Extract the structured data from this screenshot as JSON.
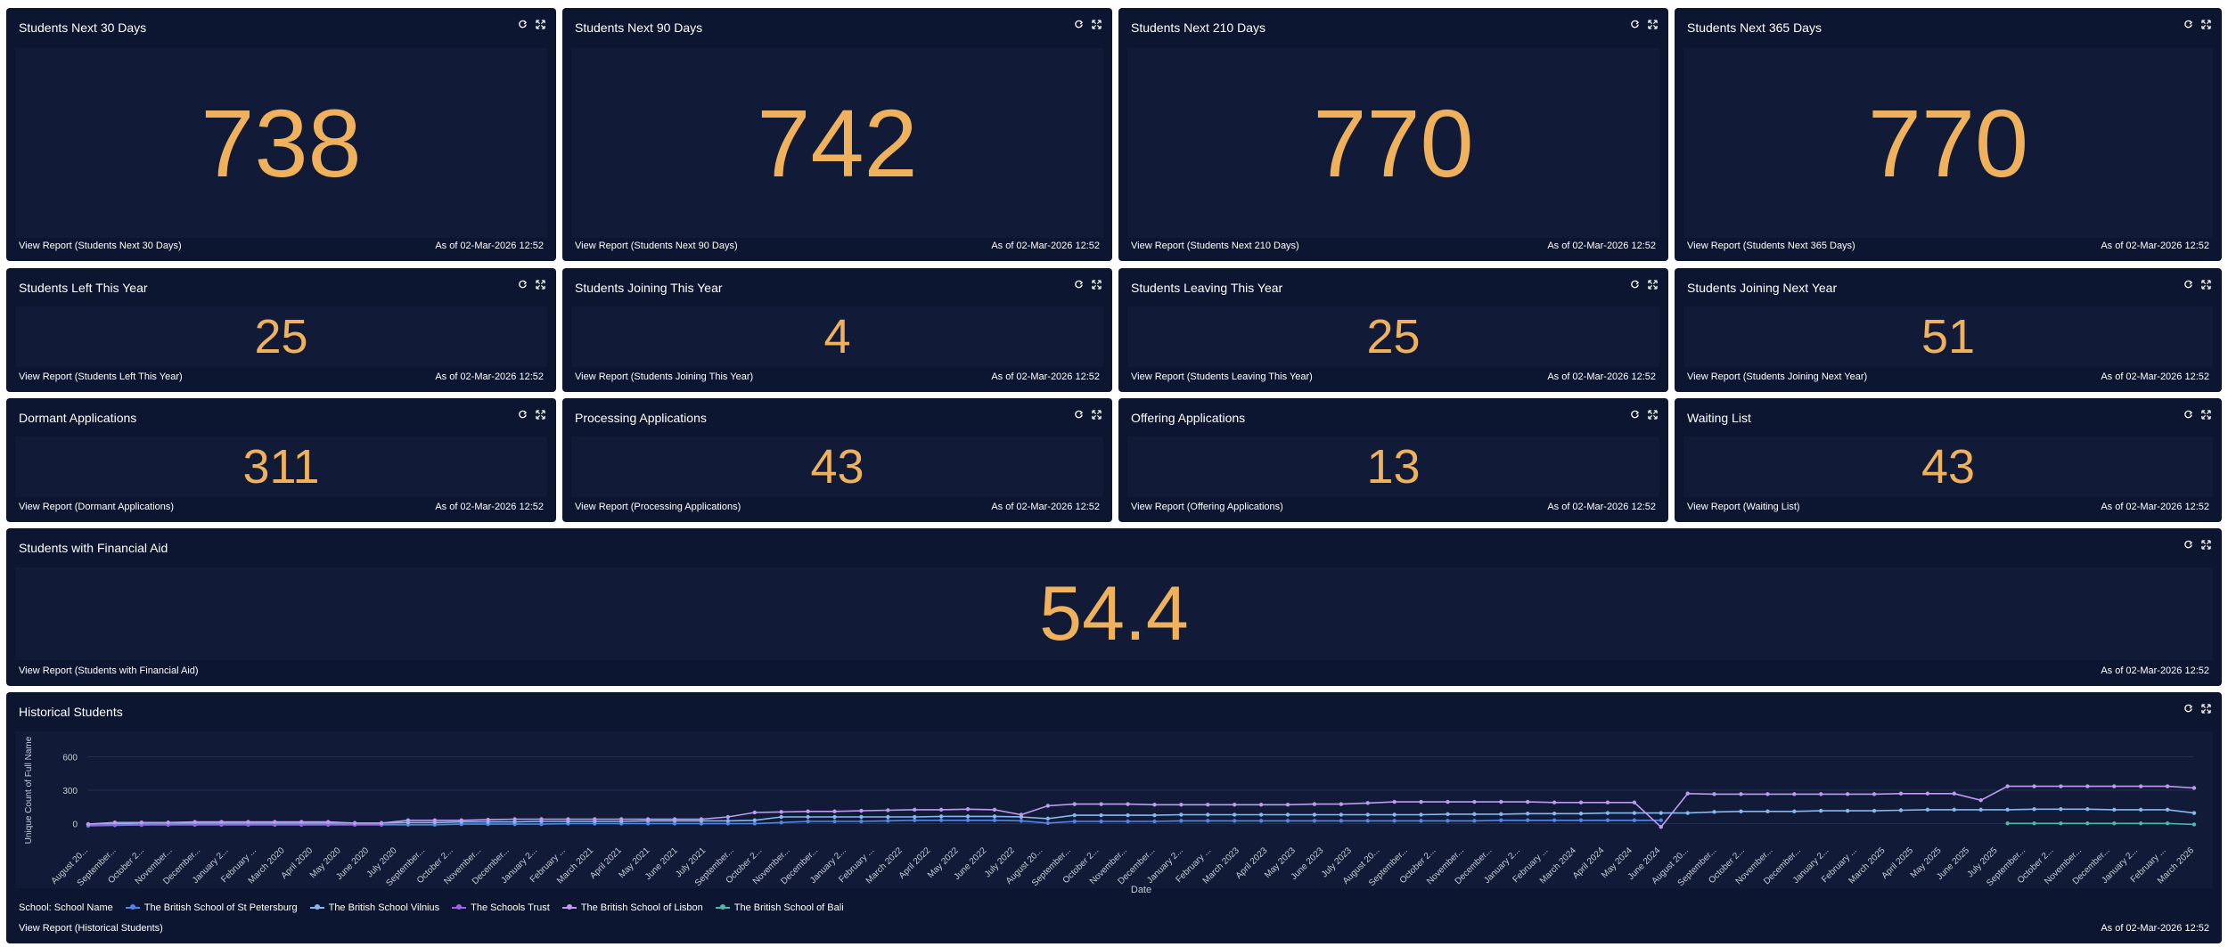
{
  "icons": {
    "refresh": "refresh-icon",
    "expand": "expand-icon"
  },
  "colors": {
    "accent": "#efb15c",
    "tile_bg": "#0d1630",
    "body_bg": "#111b38"
  },
  "tiles": {
    "next30": {
      "title": "Students Next 30 Days",
      "value": "738",
      "link": "View Report (Students Next 30 Days)",
      "asof": "As of 02-Mar-2026 12:52"
    },
    "next90": {
      "title": "Students Next 90 Days",
      "value": "742",
      "link": "View Report (Students Next 90 Days)",
      "asof": "As of 02-Mar-2026 12:52"
    },
    "next210": {
      "title": "Students Next 210 Days",
      "value": "770",
      "link": "View Report (Students Next 210 Days)",
      "asof": "As of 02-Mar-2026 12:52"
    },
    "next365": {
      "title": "Students Next 365 Days",
      "value": "770",
      "link": "View Report (Students Next 365 Days)",
      "asof": "As of 02-Mar-2026 12:52"
    },
    "left_year": {
      "title": "Students Left This Year",
      "value": "25",
      "link": "View Report (Students Left This Year)",
      "asof": "As of 02-Mar-2026 12:52"
    },
    "joining_year": {
      "title": "Students Joining This Year",
      "value": "4",
      "link": "View Report (Students Joining This Year)",
      "asof": "As of 02-Mar-2026 12:52"
    },
    "leaving_year": {
      "title": "Students Leaving This Year",
      "value": "25",
      "link": "View Report (Students Leaving This Year)",
      "asof": "As of 02-Mar-2026 12:52"
    },
    "joining_next": {
      "title": "Students Joining Next Year",
      "value": "51",
      "link": "View Report (Students Joining Next Year)",
      "asof": "As of 02-Mar-2026 12:52"
    },
    "dormant": {
      "title": "Dormant Applications",
      "value": "311",
      "link": "View Report (Dormant Applications)",
      "asof": "As of 02-Mar-2026 12:52"
    },
    "processing": {
      "title": "Processing Applications",
      "value": "43",
      "link": "View Report (Processing Applications)",
      "asof": "As of 02-Mar-2026 12:52"
    },
    "offering": {
      "title": "Offering Applications",
      "value": "13",
      "link": "View Report (Offering Applications)",
      "asof": "As of 02-Mar-2026 12:52"
    },
    "waiting": {
      "title": "Waiting List",
      "value": "43",
      "link": "View Report (Waiting List)",
      "asof": "As of 02-Mar-2026 12:52"
    },
    "finaid": {
      "title": "Students with Financial Aid",
      "value": "54.4",
      "link": "View Report (Students with Financial Aid)",
      "asof": "As of 02-Mar-2026 12:52"
    },
    "historical": {
      "title": "Historical Students",
      "link": "View Report (Historical Students)",
      "asof": "As of 02-Mar-2026 12:52"
    }
  },
  "chart_data": {
    "type": "line",
    "title": "Historical Students",
    "xlabel": "Date",
    "ylabel": "Unique Count of Full Name",
    "ylim": [
      -100,
      700
    ],
    "yticks": [
      0,
      300,
      600
    ],
    "legend_title": "School: School Name",
    "legend_position": "bottom-left",
    "x": [
      "August 20...",
      "September...",
      "October 2...",
      "November...",
      "December...",
      "January 2...",
      "February ...",
      "March 2020",
      "April 2020",
      "May 2020",
      "June 2020",
      "July 2020",
      "August 20...",
      "September...",
      "October 2...",
      "November...",
      "December...",
      "January 2...",
      "February ...",
      "March 2021",
      "April 2021",
      "May 2021",
      "June 2021",
      "July 2021",
      "August 20...",
      "September...",
      "October 2...",
      "November...",
      "December...",
      "January 2...",
      "February ...",
      "March 2022",
      "April 2022",
      "May 2022",
      "June 2022",
      "July 2022",
      "August 20...",
      "September...",
      "October 2...",
      "November...",
      "December...",
      "January 2...",
      "February ...",
      "March 2023",
      "April 2023",
      "May 2023",
      "June 2023",
      "July 2023",
      "August 20...",
      "September...",
      "October 2...",
      "November...",
      "December...",
      "January 2...",
      "February ...",
      "March 2024",
      "April 2024",
      "May 2024",
      "June 2024",
      "July 2024",
      "August 20...",
      "September...",
      "October 2...",
      "November...",
      "December...",
      "January 2...",
      "February ...",
      "March 2025",
      "April 2025",
      "May 2025",
      "June 2025",
      "July 2025",
      "August 20...",
      "September...",
      "October 2...",
      "November...",
      "December...",
      "January 2...",
      "February ...",
      "March 2026"
    ],
    "xtick_labels": [
      "August 20...",
      "September...",
      "October 2...",
      "November...",
      "December...",
      "January 2...",
      "February ...",
      "March 2020",
      "April 2020",
      "May 2020",
      "June 2020",
      "July 2020",
      "September...",
      "October 2...",
      "November...",
      "December...",
      "January 2...",
      "February ...",
      "March 2021",
      "April 2021",
      "May 2021",
      "June 2021",
      "July 2021",
      "September...",
      "October 2...",
      "November...",
      "December...",
      "January 2...",
      "February ...",
      "March 2022",
      "April 2022",
      "May 2022",
      "June 2022",
      "July 2022",
      "August 20...",
      "September...",
      "October 2...",
      "November...",
      "December...",
      "January 2...",
      "February ...",
      "March 2023",
      "April 2023",
      "May 2023",
      "June 2023",
      "July 2023",
      "August 20...",
      "September...",
      "October 2...",
      "November...",
      "December...",
      "January 2...",
      "February ...",
      "March 2024",
      "April 2024",
      "May 2024",
      "June 2024",
      "August 20...",
      "September...",
      "October 2...",
      "November...",
      "December...",
      "January 2...",
      "February ...",
      "March 2025",
      "April 2025",
      "May 2025",
      "June 2025",
      "July 2025",
      "September...",
      "October 2...",
      "November...",
      "December...",
      "January 2...",
      "February ...",
      "March 2026"
    ],
    "series": [
      {
        "name": "The British School of St Petersburg",
        "color": "#4f86e8",
        "values": [
          -20,
          -15,
          -12,
          -10,
          -10,
          -10,
          -10,
          -10,
          -10,
          -10,
          -10,
          -10,
          -10,
          -10,
          -5,
          -5,
          -5,
          -5,
          0,
          0,
          0,
          0,
          0,
          0,
          0,
          0,
          10,
          20,
          20,
          20,
          25,
          30,
          30,
          30,
          30,
          25,
          5,
          20,
          20,
          20,
          20,
          25,
          25,
          25,
          25,
          25,
          25,
          25,
          25,
          25,
          25,
          25,
          25,
          30,
          30,
          30,
          30,
          30,
          30,
          30,
          null,
          null,
          null,
          null,
          null,
          null,
          null,
          null,
          null,
          null,
          null,
          null,
          null,
          null,
          null,
          null,
          null,
          null,
          null,
          null
        ]
      },
      {
        "name": "The British School Vilnius",
        "color": "#86b7ef",
        "values": [
          -5,
          0,
          5,
          5,
          5,
          5,
          5,
          5,
          5,
          5,
          5,
          5,
          10,
          10,
          15,
          15,
          15,
          20,
          20,
          20,
          20,
          25,
          25,
          25,
          25,
          30,
          60,
          60,
          60,
          60,
          60,
          60,
          65,
          65,
          65,
          60,
          45,
          75,
          75,
          75,
          75,
          80,
          80,
          80,
          80,
          80,
          80,
          80,
          80,
          80,
          80,
          85,
          85,
          85,
          90,
          90,
          90,
          95,
          95,
          95,
          95,
          105,
          110,
          110,
          110,
          115,
          115,
          115,
          120,
          125,
          125,
          125,
          125,
          130,
          130,
          130,
          125,
          125,
          125,
          95
        ]
      },
      {
        "name": "The Schools Trust",
        "color": "#a25ee6",
        "values": [
          -10,
          -10,
          -10,
          -10,
          -10,
          -10,
          -10,
          -10,
          -10,
          -10,
          -10,
          -10,
          null,
          null,
          null,
          null,
          null,
          null,
          null,
          null,
          null,
          null,
          null,
          null,
          null,
          null,
          null,
          null,
          null,
          null,
          null,
          null,
          null,
          null,
          null,
          null,
          null,
          null,
          null,
          null,
          null,
          null,
          null,
          null,
          null,
          null,
          null,
          null,
          null,
          null,
          null,
          null,
          null,
          null,
          null,
          null,
          null,
          null,
          null,
          null,
          null,
          null,
          null,
          null,
          null,
          null,
          null,
          null,
          null,
          null,
          null,
          null,
          null,
          null,
          null,
          null,
          null,
          null,
          null,
          null
        ]
      },
      {
        "name": "The British School of Lisbon",
        "color": "#c09af2",
        "values": [
          -5,
          10,
          10,
          10,
          15,
          15,
          15,
          15,
          15,
          15,
          5,
          5,
          30,
          30,
          30,
          35,
          40,
          40,
          40,
          40,
          40,
          40,
          40,
          40,
          60,
          100,
          105,
          110,
          110,
          115,
          120,
          125,
          125,
          130,
          125,
          80,
          160,
          175,
          175,
          175,
          170,
          170,
          170,
          170,
          170,
          170,
          175,
          175,
          185,
          195,
          195,
          195,
          195,
          195,
          195,
          190,
          190,
          190,
          190,
          -30,
          270,
          265,
          265,
          265,
          265,
          265,
          265,
          265,
          270,
          270,
          270,
          210,
          335,
          335,
          335,
          335,
          335,
          335,
          335,
          320
        ]
      },
      {
        "name": "The British School of Bali",
        "color": "#4bb9a6",
        "values": [
          null,
          null,
          null,
          null,
          null,
          null,
          null,
          null,
          null,
          null,
          null,
          null,
          null,
          null,
          null,
          null,
          null,
          null,
          null,
          null,
          null,
          null,
          null,
          null,
          null,
          null,
          null,
          null,
          null,
          null,
          null,
          null,
          null,
          null,
          null,
          null,
          null,
          null,
          null,
          null,
          null,
          null,
          null,
          null,
          null,
          null,
          null,
          null,
          null,
          null,
          null,
          null,
          null,
          null,
          null,
          null,
          null,
          null,
          null,
          null,
          null,
          null,
          null,
          null,
          null,
          null,
          null,
          null,
          null,
          null,
          null,
          null,
          2,
          2,
          2,
          2,
          2,
          2,
          2,
          -8
        ]
      }
    ]
  }
}
